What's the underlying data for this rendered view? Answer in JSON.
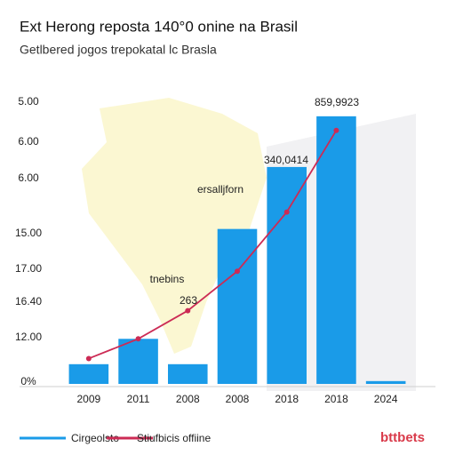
{
  "chart_data": {
    "type": "bar",
    "title": "Ext Herong reposta 140°0 onine na Brasil",
    "subtitle": "Getlbered jogos trepokatal lc Brasla",
    "categories": [
      "2009",
      "2011",
      "2008",
      "2008",
      "2018",
      "2018",
      "2024"
    ],
    "y_labels": [
      "5.00",
      "6.00",
      "6.00",
      "15.00",
      "17.00",
      "16.40",
      "12.00",
      "0%"
    ],
    "ylim": [
      0,
      100
    ],
    "series": [
      {
        "name": "Cirgeolsto",
        "color": "#1a9be8",
        "type": "bar",
        "values": [
          7,
          16,
          7,
          55,
          77,
          95,
          1
        ]
      },
      {
        "name": "Stiufbicis offiine",
        "color": "#cc2b55",
        "type": "line",
        "values": [
          9,
          16,
          26,
          40,
          61,
          90,
          null
        ]
      }
    ],
    "annotations": [
      "859,9923",
      "340,0414",
      "ersalljforn",
      "tnebins",
      "263"
    ],
    "logo": "bttbets"
  }
}
